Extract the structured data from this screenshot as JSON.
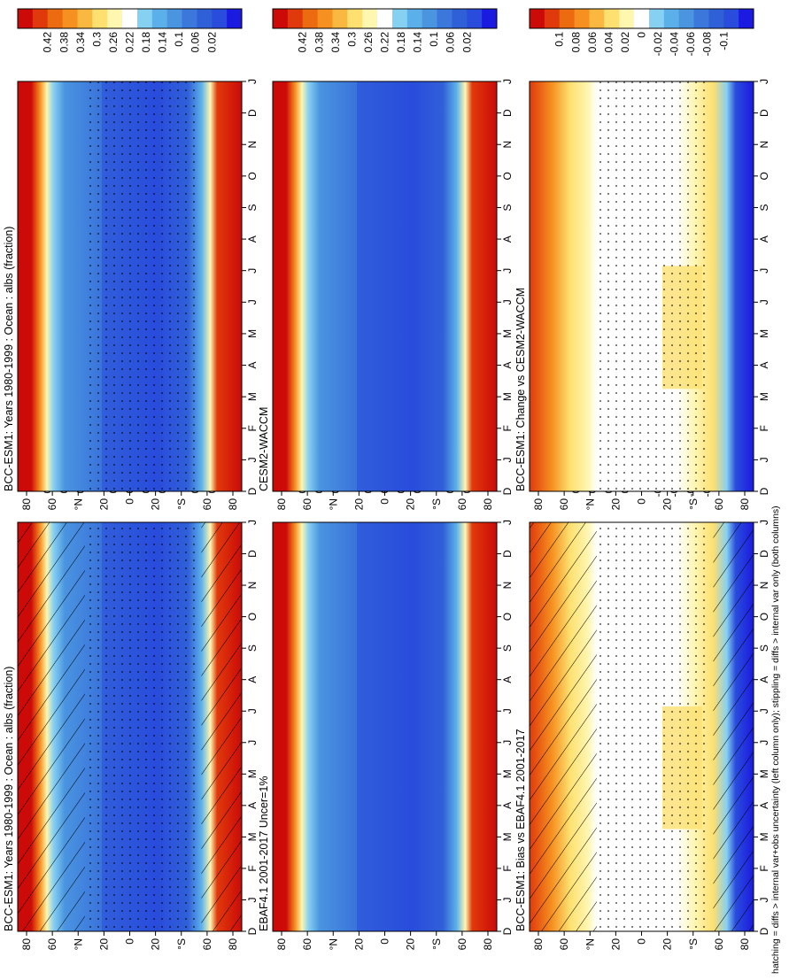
{
  "figure": {
    "footnote": "hatching = diffs > internal var+obs uncertainty (left column only); stippling = diffs > internal var only (both columns)"
  },
  "colors": {
    "main_scale": [
      "#1a1ae0",
      "#2a4cdc",
      "#3060d8",
      "#3c78dc",
      "#4a94e0",
      "#5cb0ea",
      "#86d0f2",
      "#ffffff",
      "#fff6b0",
      "#fde070",
      "#fbb840",
      "#f69020",
      "#ec6a10",
      "#e03a0c",
      "#cc0a08"
    ],
    "diff_scale": [
      "#1a1ae0",
      "#2a4cdc",
      "#3060d8",
      "#3c78dc",
      "#4a94e0",
      "#5cb0ea",
      "#86d0f2",
      "#ffffff",
      "#fff6b0",
      "#fde070",
      "#fbb840",
      "#f69020",
      "#ec6a10",
      "#e03a0c",
      "#cc0a08"
    ]
  },
  "chart_data": [
    {
      "id": "left-top",
      "type": "heatmap",
      "title": "BCC-ESM1: Years 1980-1999 : Ocean : albs (fraction)",
      "x_categories": [
        "D",
        "J",
        "F",
        "M",
        "A",
        "M",
        "J",
        "J",
        "A",
        "S",
        "O",
        "N",
        "D",
        "J"
      ],
      "y_ticks": [
        "80",
        "60",
        "°N",
        "20",
        "0",
        "20",
        "°S",
        "60",
        "80"
      ],
      "colorbar_ticks": [
        "0.42",
        "0.38",
        "0.34",
        "0.3",
        "0.26",
        "0.22",
        "0.18",
        "0.14",
        "0.1",
        "0.06",
        "0.02"
      ],
      "values": {
        "polar": 0.42,
        "high_lat": 0.3,
        "mid_lat": 0.1,
        "tropics": 0.06
      },
      "hatching": true,
      "stippling": true
    },
    {
      "id": "left-middle",
      "type": "heatmap",
      "title": "EBAF4.1 2001-2017 Uncer=1%",
      "x_categories": [
        "D",
        "J",
        "F",
        "M",
        "A",
        "M",
        "J",
        "J",
        "A",
        "S",
        "O",
        "N",
        "D",
        "J"
      ],
      "y_ticks": [
        "80",
        "60",
        "°N",
        "20",
        "0",
        "20",
        "°S",
        "60",
        "80"
      ],
      "colorbar_ticks": [
        "0.42",
        "0.38",
        "0.34",
        "0.3",
        "0.26",
        "0.22",
        "0.18",
        "0.14",
        "0.1",
        "0.06",
        "0.02"
      ],
      "values": {
        "polar": 0.42,
        "high_lat": 0.3,
        "mid_lat": 0.1,
        "tropics": 0.06
      },
      "hatching": false,
      "stippling": false
    },
    {
      "id": "left-bottom",
      "type": "heatmap",
      "title": "BCC-ESM1: Bias vs EBAF4.1 2001-2017",
      "x_categories": [
        "D",
        "J",
        "F",
        "M",
        "A",
        "M",
        "J",
        "J",
        "A",
        "S",
        "O",
        "N",
        "D",
        "J"
      ],
      "y_ticks": [
        "80",
        "60",
        "°N",
        "20",
        "0",
        "20",
        "°S",
        "60",
        "80"
      ],
      "colorbar_ticks": [
        "0.1",
        "0.08",
        "0.06",
        "0.04",
        "0.02",
        "0",
        "-0.02",
        "-0.04",
        "-0.06",
        "-0.08",
        "-0.1"
      ],
      "values": {
        "north_polar": 0.1,
        "tropics": 0.0,
        "south_summer": 0.04,
        "south_polar": -0.1
      },
      "hatching": true,
      "stippling": true
    },
    {
      "id": "right-top",
      "type": "heatmap",
      "title": "BCC-ESM1: Years 1980-1999 : Ocean : albs (fraction)",
      "x_categories": [
        "D",
        "J",
        "F",
        "M",
        "A",
        "M",
        "J",
        "J",
        "A",
        "S",
        "O",
        "N",
        "D",
        "J"
      ],
      "y_ticks": [
        "80",
        "60",
        "°N",
        "20",
        "0",
        "20",
        "°S",
        "60",
        "80"
      ],
      "colorbar_ticks": [
        "0.42",
        "0.38",
        "0.34",
        "0.3",
        "0.26",
        "0.22",
        "0.18",
        "0.14",
        "0.1",
        "0.06",
        "0.02"
      ],
      "values": {
        "polar": 0.42,
        "high_lat": 0.3,
        "mid_lat": 0.1,
        "tropics": 0.06
      },
      "hatching": false,
      "stippling": true
    },
    {
      "id": "right-middle",
      "type": "heatmap",
      "title": "CESM2-WACCM",
      "x_categories": [
        "D",
        "J",
        "F",
        "M",
        "A",
        "M",
        "J",
        "J",
        "A",
        "S",
        "O",
        "N",
        "D",
        "J"
      ],
      "y_ticks": [
        "80",
        "60",
        "°N",
        "20",
        "0",
        "20",
        "°S",
        "60",
        "80"
      ],
      "colorbar_ticks": [
        "0.42",
        "0.38",
        "0.34",
        "0.3",
        "0.26",
        "0.22",
        "0.18",
        "0.14",
        "0.1",
        "0.06",
        "0.02"
      ],
      "values": {
        "polar": 0.42,
        "high_lat": 0.3,
        "mid_lat": 0.1,
        "tropics": 0.06
      },
      "hatching": false,
      "stippling": false
    },
    {
      "id": "right-bottom",
      "type": "heatmap",
      "title": "BCC-ESM1: Change vs CESM2-WACCM",
      "x_categories": [
        "D",
        "J",
        "F",
        "M",
        "A",
        "M",
        "J",
        "J",
        "A",
        "S",
        "O",
        "N",
        "D",
        "J"
      ],
      "y_ticks": [
        "80",
        "60",
        "°N",
        "20",
        "0",
        "20",
        "°S",
        "60",
        "80"
      ],
      "colorbar_ticks": [
        "0.1",
        "0.08",
        "0.06",
        "0.04",
        "0.02",
        "0",
        "-0.02",
        "-0.04",
        "-0.06",
        "-0.08",
        "-0.1"
      ],
      "values": {
        "north_polar": 0.06,
        "tropics": 0.0,
        "south_summer": 0.04,
        "south_polar": -0.1
      },
      "hatching": false,
      "stippling": true
    }
  ]
}
